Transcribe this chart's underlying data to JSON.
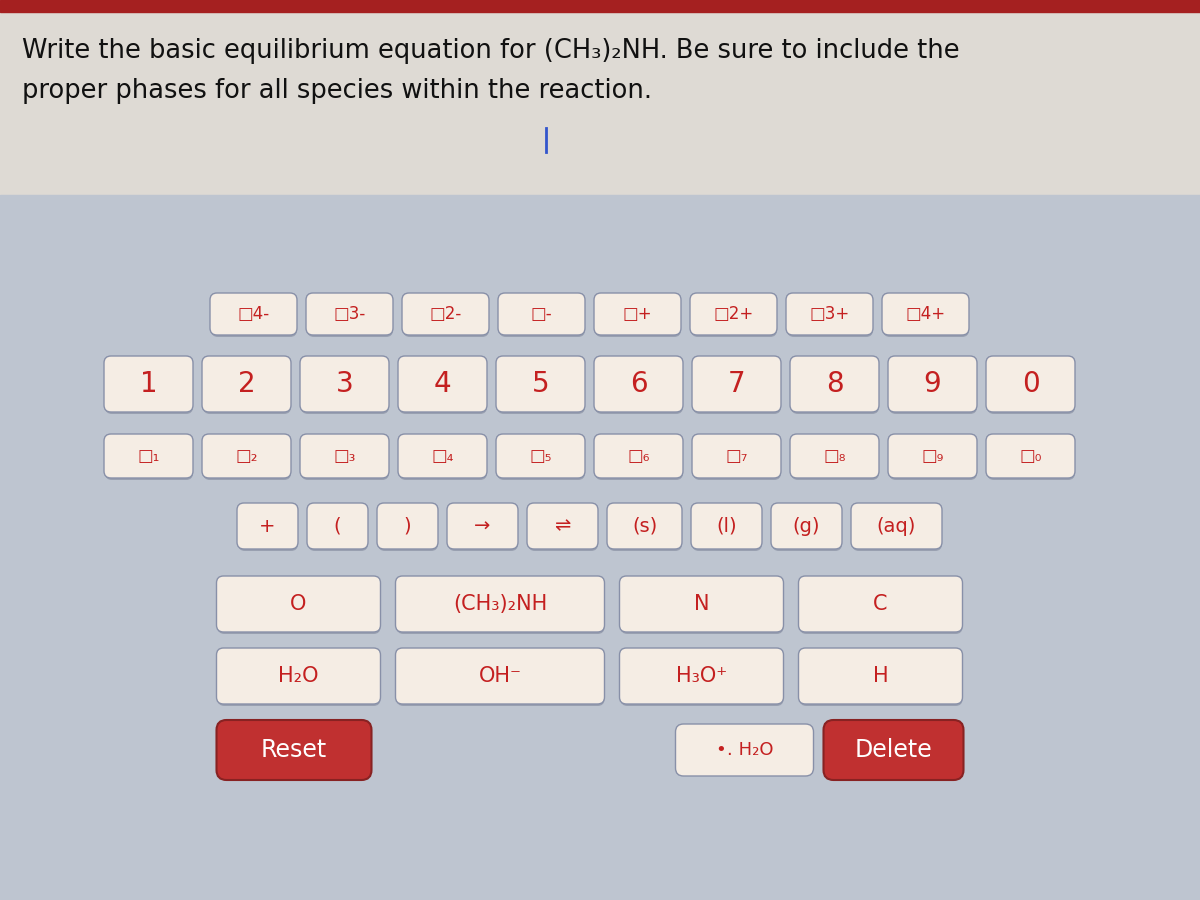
{
  "title_line1": "Write the basic equilibrium equation for (CH₃)₂NH. Be sure to include the",
  "title_line2": "proper phases for all species within the reaction.",
  "bg_color_top": "#dedad4",
  "bg_color_keyboard": "#bec5d0",
  "header_bar_color": "#a52020",
  "key_bg": "#f5ede4",
  "key_border": "#8890a8",
  "key_text_color": "#c42020",
  "reset_bg": "#c03030",
  "reset_text": "#ffffff",
  "delete_bg": "#c03030",
  "delete_text": "#ffffff",
  "cursor_color": "#3355cc",
  "row1_labels": [
    "□4-",
    "□3-",
    "□2-",
    "□-",
    "□+",
    "□2+",
    "□3+",
    "□4+"
  ],
  "row2_labels": [
    "1",
    "2",
    "3",
    "4",
    "5",
    "6",
    "7",
    "8",
    "9",
    "0"
  ],
  "row3_labels": [
    "□₁",
    "□₂",
    "□₃",
    "□₄",
    "□₅",
    "□₆",
    "□₇",
    "□₈",
    "□₉",
    "□₀"
  ],
  "row4_labels": [
    "+",
    "(",
    ")",
    "→",
    "⇌",
    "(s)",
    "(l)",
    "(g)",
    "(aq)"
  ],
  "row5_labels": [
    "O",
    "(CH₃)₂NH",
    "N",
    "C"
  ],
  "row6_labels": [
    "H₂O",
    "OH⁻",
    "H₃O⁺",
    "H"
  ],
  "h2o_dot_label": "•․ H₂O",
  "delete_label": "Delete",
  "reset_label": "Reset"
}
